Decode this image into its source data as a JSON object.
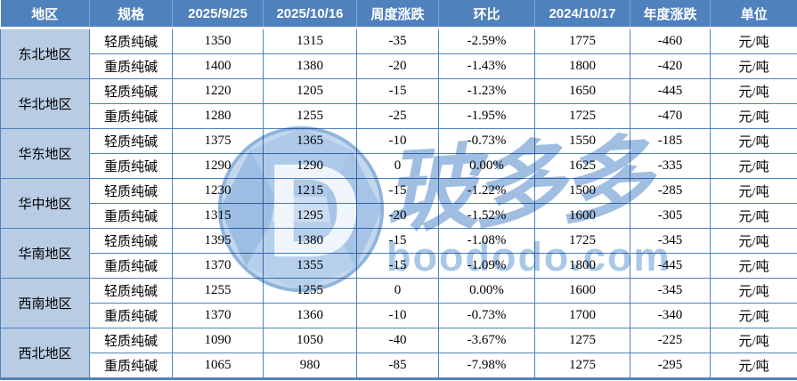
{
  "table": {
    "columns": [
      "地区",
      "规格",
      "2025/9/25",
      "2025/10/16",
      "周度涨跌",
      "环比",
      "2024/10/17",
      "年度涨跌",
      "单位"
    ],
    "regions": [
      {
        "name": "东北地区",
        "rows": [
          {
            "spec": "轻质纯碱",
            "prev": "1350",
            "curr": "1315",
            "weekly": "-35",
            "wow": "-2.59%",
            "year_ago": "1775",
            "yearly": "-460",
            "unit": "元/吨"
          },
          {
            "spec": "重质纯碱",
            "prev": "1400",
            "curr": "1380",
            "weekly": "-20",
            "wow": "-1.43%",
            "year_ago": "1800",
            "yearly": "-420",
            "unit": "元/吨"
          }
        ]
      },
      {
        "name": "华北地区",
        "rows": [
          {
            "spec": "轻质纯碱",
            "prev": "1220",
            "curr": "1205",
            "weekly": "-15",
            "wow": "-1.23%",
            "year_ago": "1650",
            "yearly": "-445",
            "unit": "元/吨"
          },
          {
            "spec": "重质纯碱",
            "prev": "1280",
            "curr": "1255",
            "weekly": "-25",
            "wow": "-1.95%",
            "year_ago": "1725",
            "yearly": "-470",
            "unit": "元/吨"
          }
        ]
      },
      {
        "name": "华东地区",
        "rows": [
          {
            "spec": "轻质纯碱",
            "prev": "1375",
            "curr": "1365",
            "weekly": "-10",
            "wow": "-0.73%",
            "year_ago": "1550",
            "yearly": "-185",
            "unit": "元/吨"
          },
          {
            "spec": "重质纯碱",
            "prev": "1290",
            "curr": "1290",
            "weekly": "0",
            "wow": "0.00%",
            "year_ago": "1625",
            "yearly": "-335",
            "unit": "元/吨"
          }
        ]
      },
      {
        "name": "华中地区",
        "rows": [
          {
            "spec": "轻质纯碱",
            "prev": "1230",
            "curr": "1215",
            "weekly": "-15",
            "wow": "-1.22%",
            "year_ago": "1500",
            "yearly": "-285",
            "unit": "元/吨"
          },
          {
            "spec": "重质纯碱",
            "prev": "1315",
            "curr": "1295",
            "weekly": "-20",
            "wow": "-1.52%",
            "year_ago": "1600",
            "yearly": "-305",
            "unit": "元/吨"
          }
        ]
      },
      {
        "name": "华南地区",
        "rows": [
          {
            "spec": "轻质纯碱",
            "prev": "1395",
            "curr": "1380",
            "weekly": "-15",
            "wow": "-1.08%",
            "year_ago": "1725",
            "yearly": "-345",
            "unit": "元/吨"
          },
          {
            "spec": "重质纯碱",
            "prev": "1370",
            "curr": "1355",
            "weekly": "-15",
            "wow": "-1.09%",
            "year_ago": "1800",
            "yearly": "-445",
            "unit": "元/吨"
          }
        ]
      },
      {
        "name": "西南地区",
        "rows": [
          {
            "spec": "轻质纯碱",
            "prev": "1255",
            "curr": "1255",
            "weekly": "0",
            "wow": "0.00%",
            "year_ago": "1600",
            "yearly": "-345",
            "unit": "元/吨"
          },
          {
            "spec": "重质纯碱",
            "prev": "1370",
            "curr": "1360",
            "weekly": "-10",
            "wow": "-0.73%",
            "year_ago": "1700",
            "yearly": "-340",
            "unit": "元/吨"
          }
        ]
      },
      {
        "name": "西北地区",
        "rows": [
          {
            "spec": "轻质纯碱",
            "prev": "1090",
            "curr": "1050",
            "weekly": "-40",
            "wow": "-3.67%",
            "year_ago": "1275",
            "yearly": "-225",
            "unit": "元/吨"
          },
          {
            "spec": "重质纯碱",
            "prev": "1065",
            "curr": "980",
            "weekly": "-85",
            "wow": "-7.98%",
            "year_ago": "1275",
            "yearly": "-295",
            "unit": "元/吨"
          }
        ]
      }
    ]
  },
  "watermark": {
    "logo_letter": "D",
    "chinese": "玻多多",
    "domain": "boododo.com"
  },
  "colors": {
    "header_bg": "#4F81BD",
    "row_light": "#B8CCE4",
    "row_white": "#FFFFFF",
    "border": "#4F81BD",
    "header_text": "#FFFFFF",
    "watermark": "#A9C8E8"
  }
}
